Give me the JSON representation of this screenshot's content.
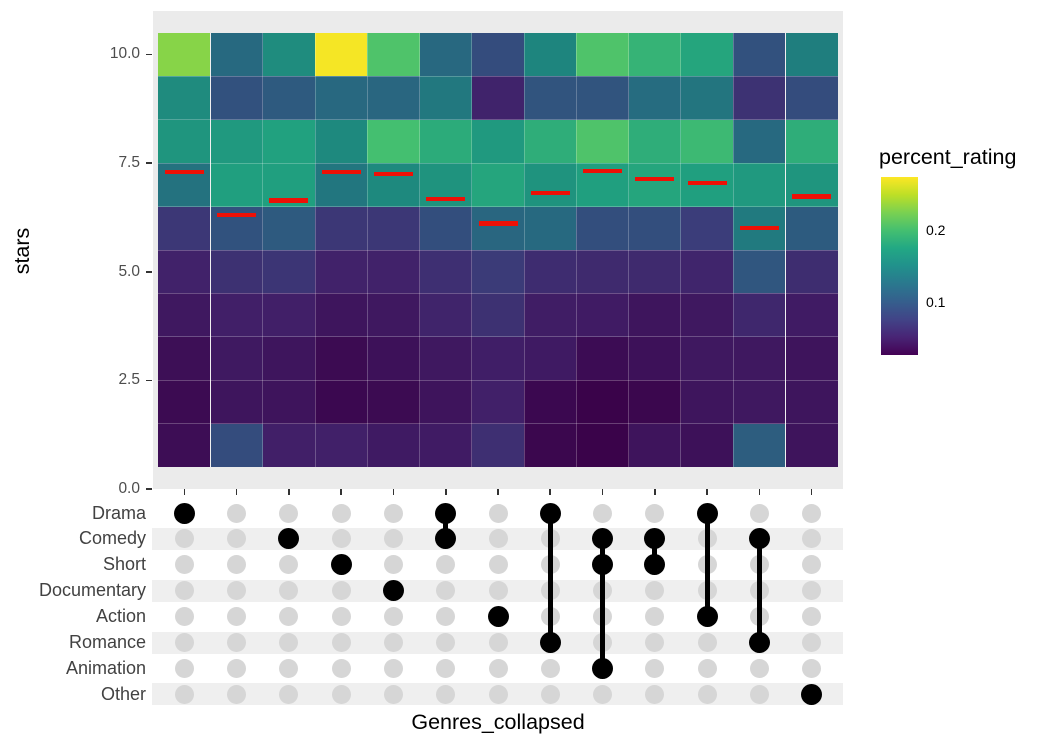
{
  "chart_data": {
    "type": "heatmap",
    "title": "",
    "ylabel": "stars",
    "xlabel": "Genres_collapsed",
    "y_ticks": [
      {
        "value": 0.0,
        "label": "0.0"
      },
      {
        "value": 2.5,
        "label": "2.5"
      },
      {
        "value": 5.0,
        "label": "5.0"
      },
      {
        "value": 7.5,
        "label": "7.5"
      },
      {
        "value": 10.0,
        "label": "10.0"
      }
    ],
    "legend": {
      "title": "percent_rating",
      "ticks": [
        {
          "value": 0.2,
          "label": "0.2"
        },
        {
          "value": 0.1,
          "label": "0.1"
        }
      ]
    },
    "scale": {
      "min": 0.025,
      "max": 0.275,
      "palette": "viridis"
    },
    "stars_levels": [
      1,
      2,
      3,
      4,
      5,
      6,
      7,
      8,
      9,
      10
    ],
    "genre_rows": [
      "Drama",
      "Comedy",
      "Short",
      "Documentary",
      "Action",
      "Romance",
      "Animation",
      "Other"
    ],
    "columns": [
      {
        "genres": [
          "Drama"
        ],
        "mean_stars": 7.3,
        "percents": [
          0.035,
          0.033,
          0.036,
          0.043,
          0.051,
          0.07,
          0.132,
          0.165,
          0.157,
          0.23
        ]
      },
      {
        "genres": [],
        "mean_stars": 6.3,
        "percents": [
          0.09,
          0.041,
          0.044,
          0.049,
          0.064,
          0.096,
          0.173,
          0.168,
          0.095,
          0.122
        ]
      },
      {
        "genres": [
          "Comedy"
        ],
        "mean_stars": 6.64,
        "percents": [
          0.049,
          0.04,
          0.041,
          0.049,
          0.068,
          0.105,
          0.173,
          0.175,
          0.105,
          0.158
        ]
      },
      {
        "genres": [
          "Short"
        ],
        "mean_stars": 7.3,
        "percents": [
          0.05,
          0.031,
          0.033,
          0.041,
          0.051,
          0.07,
          0.136,
          0.155,
          0.12,
          0.272
        ]
      },
      {
        "genres": [
          "Documentary"
        ],
        "mean_stars": 7.25,
        "percents": [
          0.045,
          0.033,
          0.038,
          0.043,
          0.051,
          0.07,
          0.155,
          0.2,
          0.118,
          0.205
        ]
      },
      {
        "genres": [
          "Drama",
          "Comedy"
        ],
        "mean_stars": 6.68,
        "percents": [
          0.046,
          0.04,
          0.043,
          0.053,
          0.063,
          0.092,
          0.163,
          0.183,
          0.138,
          0.12
        ]
      },
      {
        "genres": [
          "Action"
        ],
        "mean_stars": 6.11,
        "percents": [
          0.063,
          0.05,
          0.048,
          0.064,
          0.073,
          0.118,
          0.178,
          0.168,
          0.052,
          0.09
        ]
      },
      {
        "genres": [
          "Drama",
          "Romance"
        ],
        "mean_stars": 6.82,
        "percents": [
          0.03,
          0.031,
          0.045,
          0.047,
          0.06,
          0.122,
          0.163,
          0.185,
          0.098,
          0.152
        ]
      },
      {
        "genres": [
          "Comedy",
          "Short",
          "Animation"
        ],
        "mean_stars": 7.32,
        "percents": [
          0.027,
          0.027,
          0.034,
          0.046,
          0.058,
          0.092,
          0.173,
          0.205,
          0.098,
          0.205
        ]
      },
      {
        "genres": [
          "Comedy",
          "Short"
        ],
        "mean_stars": 7.14,
        "percents": [
          0.04,
          0.03,
          0.038,
          0.041,
          0.058,
          0.092,
          0.178,
          0.185,
          0.125,
          0.19
        ]
      },
      {
        "genres": [
          "Drama",
          "Action"
        ],
        "mean_stars": 7.05,
        "percents": [
          0.038,
          0.041,
          0.043,
          0.043,
          0.054,
          0.075,
          0.173,
          0.195,
          0.135,
          0.178
        ]
      },
      {
        "genres": [
          "Comedy",
          "Romance"
        ],
        "mean_stars": 6.0,
        "percents": [
          0.108,
          0.043,
          0.043,
          0.056,
          0.1,
          0.14,
          0.168,
          0.122,
          0.065,
          0.095
        ]
      },
      {
        "genres": [
          "Other"
        ],
        "mean_stars": 6.73,
        "percents": [
          0.04,
          0.041,
          0.04,
          0.046,
          0.061,
          0.106,
          0.165,
          0.185,
          0.09,
          0.145
        ]
      }
    ]
  }
}
